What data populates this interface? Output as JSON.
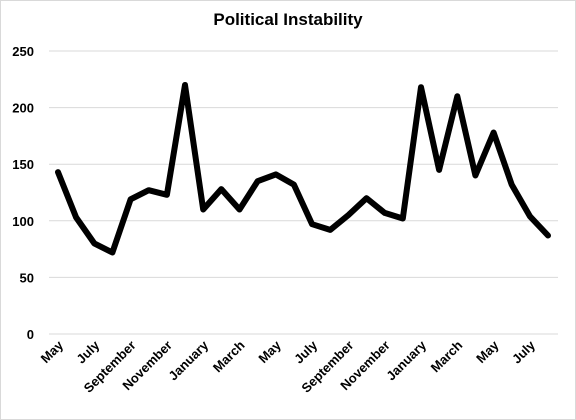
{
  "chart_data": {
    "type": "line",
    "title": "Political Instability",
    "xlabel": "",
    "ylabel": "",
    "ylim": [
      0,
      250
    ],
    "yticks": [
      0,
      50,
      100,
      150,
      200,
      250
    ],
    "grid": true,
    "legend": "none",
    "x": [
      "May",
      "June",
      "July",
      "August",
      "September",
      "October",
      "November",
      "December",
      "January",
      "February",
      "March",
      "April",
      "May",
      "June",
      "July",
      "August",
      "September",
      "October",
      "November",
      "December",
      "January",
      "February",
      "March",
      "April",
      "May",
      "June",
      "July",
      "August"
    ],
    "x_tick_labels_shown": [
      "May",
      "July",
      "September",
      "November",
      "January",
      "March",
      "May",
      "July",
      "September",
      "November",
      "January",
      "March",
      "May",
      "July"
    ],
    "series": [
      {
        "values": [
          143,
          103,
          80,
          72,
          119,
          127,
          123,
          220,
          110,
          128,
          110,
          135,
          141,
          132,
          97,
          92,
          105,
          120,
          107,
          102,
          218,
          145,
          210,
          140,
          178,
          132,
          104,
          87
        ],
        "color": "#000000"
      }
    ]
  }
}
